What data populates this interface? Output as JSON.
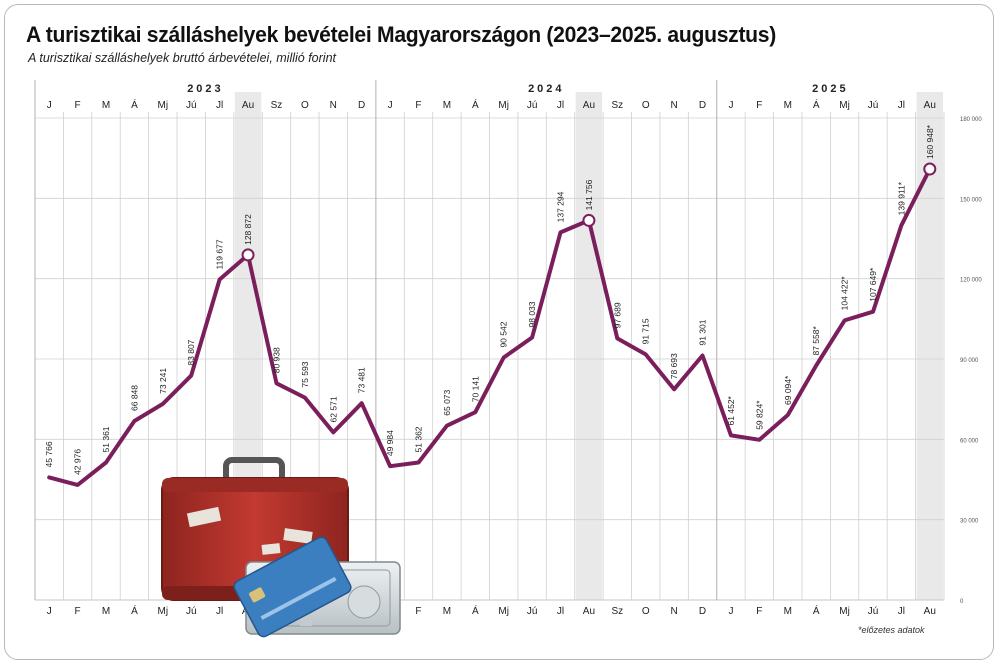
{
  "title": "A turisztikai szálláshelyek bevételei Magyarországon (2023–2025. augusztus)",
  "subtitle": "A turisztikai szálláshelyek bruttó árbevételei, millió forint",
  "footnote": "*előzetes adatok",
  "colors": {
    "line": "#7a1f5c",
    "grid": "#d0d0d0",
    "highlight": "#e9e9e9",
    "suitcase": "#b3362e",
    "card": "#3c7fc1"
  },
  "decoration": [
    "suitcase-illustration",
    "bank-card-illustration",
    "banknotes-illustration"
  ],
  "chart_data": {
    "type": "line",
    "title": "A turisztikai szálláshelyek bevételei Magyarországon (2023–2025. augusztus)",
    "ylabel": "",
    "ylim": [
      0,
      180000
    ],
    "yticks": [
      "0",
      "30 000",
      "60 000",
      "90 000",
      "120 000",
      "150 000",
      "180 000"
    ],
    "years": [
      {
        "label": "2023",
        "start": 0,
        "count": 12
      },
      {
        "label": "2024",
        "start": 12,
        "count": 12
      },
      {
        "label": "2025",
        "start": 24,
        "count": 8
      }
    ],
    "categories": [
      "J",
      "F",
      "M",
      "Á",
      "Mj",
      "Jú",
      "Jl",
      "Au",
      "Sz",
      "O",
      "N",
      "D",
      "J",
      "F",
      "M",
      "Á",
      "Mj",
      "Jú",
      "Jl",
      "Au",
      "Sz",
      "O",
      "N",
      "D",
      "J",
      "F",
      "M",
      "Á",
      "Mj",
      "Jú",
      "Jl",
      "Au"
    ],
    "highlight_months": [
      7,
      19,
      31
    ],
    "series": [
      {
        "name": "",
        "values": [
          45766,
          42976,
          51361,
          66848,
          73241,
          83807,
          119677,
          128872,
          80938,
          75593,
          62571,
          73481,
          49984,
          51362,
          65073,
          70141,
          90542,
          98033,
          137294,
          141756,
          97689,
          91715,
          78693,
          91301,
          61452,
          59824,
          69094,
          87558,
          104422,
          107649,
          139911,
          160948
        ],
        "labels": [
          "45 766",
          "42 976",
          "51 361",
          "66 848",
          "73 241",
          "83 807",
          "119 677",
          "128 872",
          "80 938",
          "75 593",
          "62 571",
          "73 481",
          "49 984",
          "51 362",
          "65 073",
          "70 141",
          "90 542",
          "98 033",
          "137 294",
          "141 756",
          "97 689",
          "91 715",
          "78 693",
          "91 301",
          "61 452*",
          "59 824*",
          "69 094*",
          "87 558*",
          "104 422*",
          "107 649*",
          "139 911*",
          "160 948*"
        ],
        "markers": [
          7,
          19,
          31
        ]
      }
    ],
    "grid": true
  }
}
